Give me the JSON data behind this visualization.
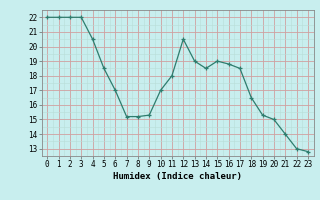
{
  "x": [
    0,
    1,
    2,
    3,
    4,
    5,
    6,
    7,
    8,
    9,
    10,
    11,
    12,
    13,
    14,
    15,
    16,
    17,
    18,
    19,
    20,
    21,
    22,
    23
  ],
  "y": [
    22,
    22,
    22,
    22,
    20.5,
    18.5,
    17,
    15.2,
    15.2,
    15.3,
    17,
    18,
    20.5,
    19,
    18.5,
    19,
    18.8,
    18.5,
    16.5,
    15.3,
    15,
    14,
    13,
    12.8
  ],
  "line_color": "#2e7d6e",
  "marker": "+",
  "bg_color": "#c8eeee",
  "grid_color_major": "#d0a0a0",
  "grid_color_minor": "#b8ddd8",
  "xlabel": "Humidex (Indice chaleur)",
  "ylim": [
    12.5,
    22.5
  ],
  "xlim": [
    -0.5,
    23.5
  ],
  "yticks": [
    13,
    14,
    15,
    16,
    17,
    18,
    19,
    20,
    21,
    22
  ],
  "xticks": [
    0,
    1,
    2,
    3,
    4,
    5,
    6,
    7,
    8,
    9,
    10,
    11,
    12,
    13,
    14,
    15,
    16,
    17,
    18,
    19,
    20,
    21,
    22,
    23
  ],
  "label_fontsize": 6.5,
  "tick_fontsize": 5.5
}
